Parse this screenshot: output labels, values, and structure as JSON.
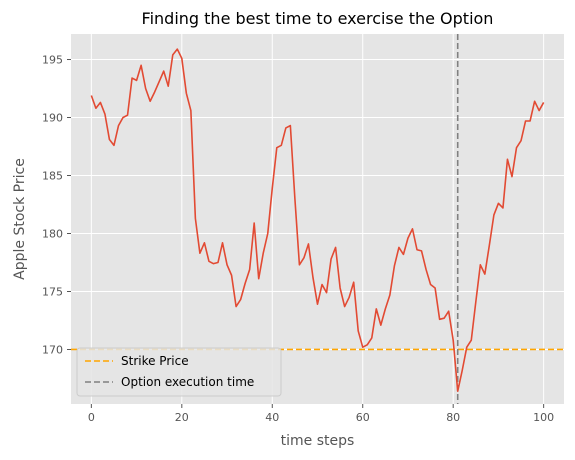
{
  "chart_data": {
    "type": "line",
    "title": "Finding the best time to exercise the Option",
    "xlabel": "time steps",
    "ylabel": "Apple Stock Price",
    "xlim": [
      -4.5,
      104.5
    ],
    "ylim": [
      165.3,
      197.2
    ],
    "xticks": [
      0,
      20,
      40,
      60,
      80,
      100
    ],
    "yticks": [
      170,
      175,
      180,
      185,
      190,
      195
    ],
    "grid": true,
    "legend_position": "lower-left",
    "series": [
      {
        "values": [
          191.9,
          190.8,
          191.3,
          190.3,
          188.1,
          187.6,
          189.3,
          190.0,
          190.2,
          193.4,
          193.2,
          194.5,
          192.5,
          191.4,
          192.2,
          193.1,
          194.0,
          192.7,
          195.4,
          195.9,
          195.1,
          192.1,
          190.6,
          181.3,
          178.3,
          179.2,
          177.6,
          177.4,
          177.5,
          179.2,
          177.3,
          176.4,
          173.7,
          174.3,
          175.7,
          176.9,
          180.9,
          176.1,
          178.3,
          180.0,
          183.9,
          187.4,
          187.6,
          189.1,
          189.3,
          183.0,
          177.3,
          177.9,
          179.1,
          176.2,
          173.9,
          175.6,
          174.9,
          177.8,
          178.8,
          175.3,
          173.7,
          174.5,
          175.8,
          171.6,
          170.2,
          170.4,
          171.0,
          173.5,
          172.1,
          173.5,
          174.7,
          177.2,
          178.8,
          178.2,
          179.6,
          180.4,
          178.6,
          178.5,
          176.9,
          175.6,
          175.3,
          172.6,
          172.7,
          173.3,
          170.8,
          166.4,
          168.2,
          170.2,
          170.8,
          174.1,
          177.3,
          176.5,
          179.0,
          181.6,
          182.6,
          182.2,
          186.4,
          184.9,
          187.4,
          188.0,
          189.7,
          189.7,
          191.4,
          190.6,
          191.3
        ],
        "color": "#E24A33"
      }
    ],
    "reference_lines": [
      {
        "name": "Strike Price",
        "orientation": "horizontal",
        "value": 170,
        "color": "#FFA500",
        "style": "dashed"
      },
      {
        "name": "Option execution time",
        "orientation": "vertical",
        "value": 81,
        "color": "#808080",
        "style": "dashed"
      }
    ],
    "legend": [
      "Strike Price",
      "Option execution time"
    ]
  }
}
